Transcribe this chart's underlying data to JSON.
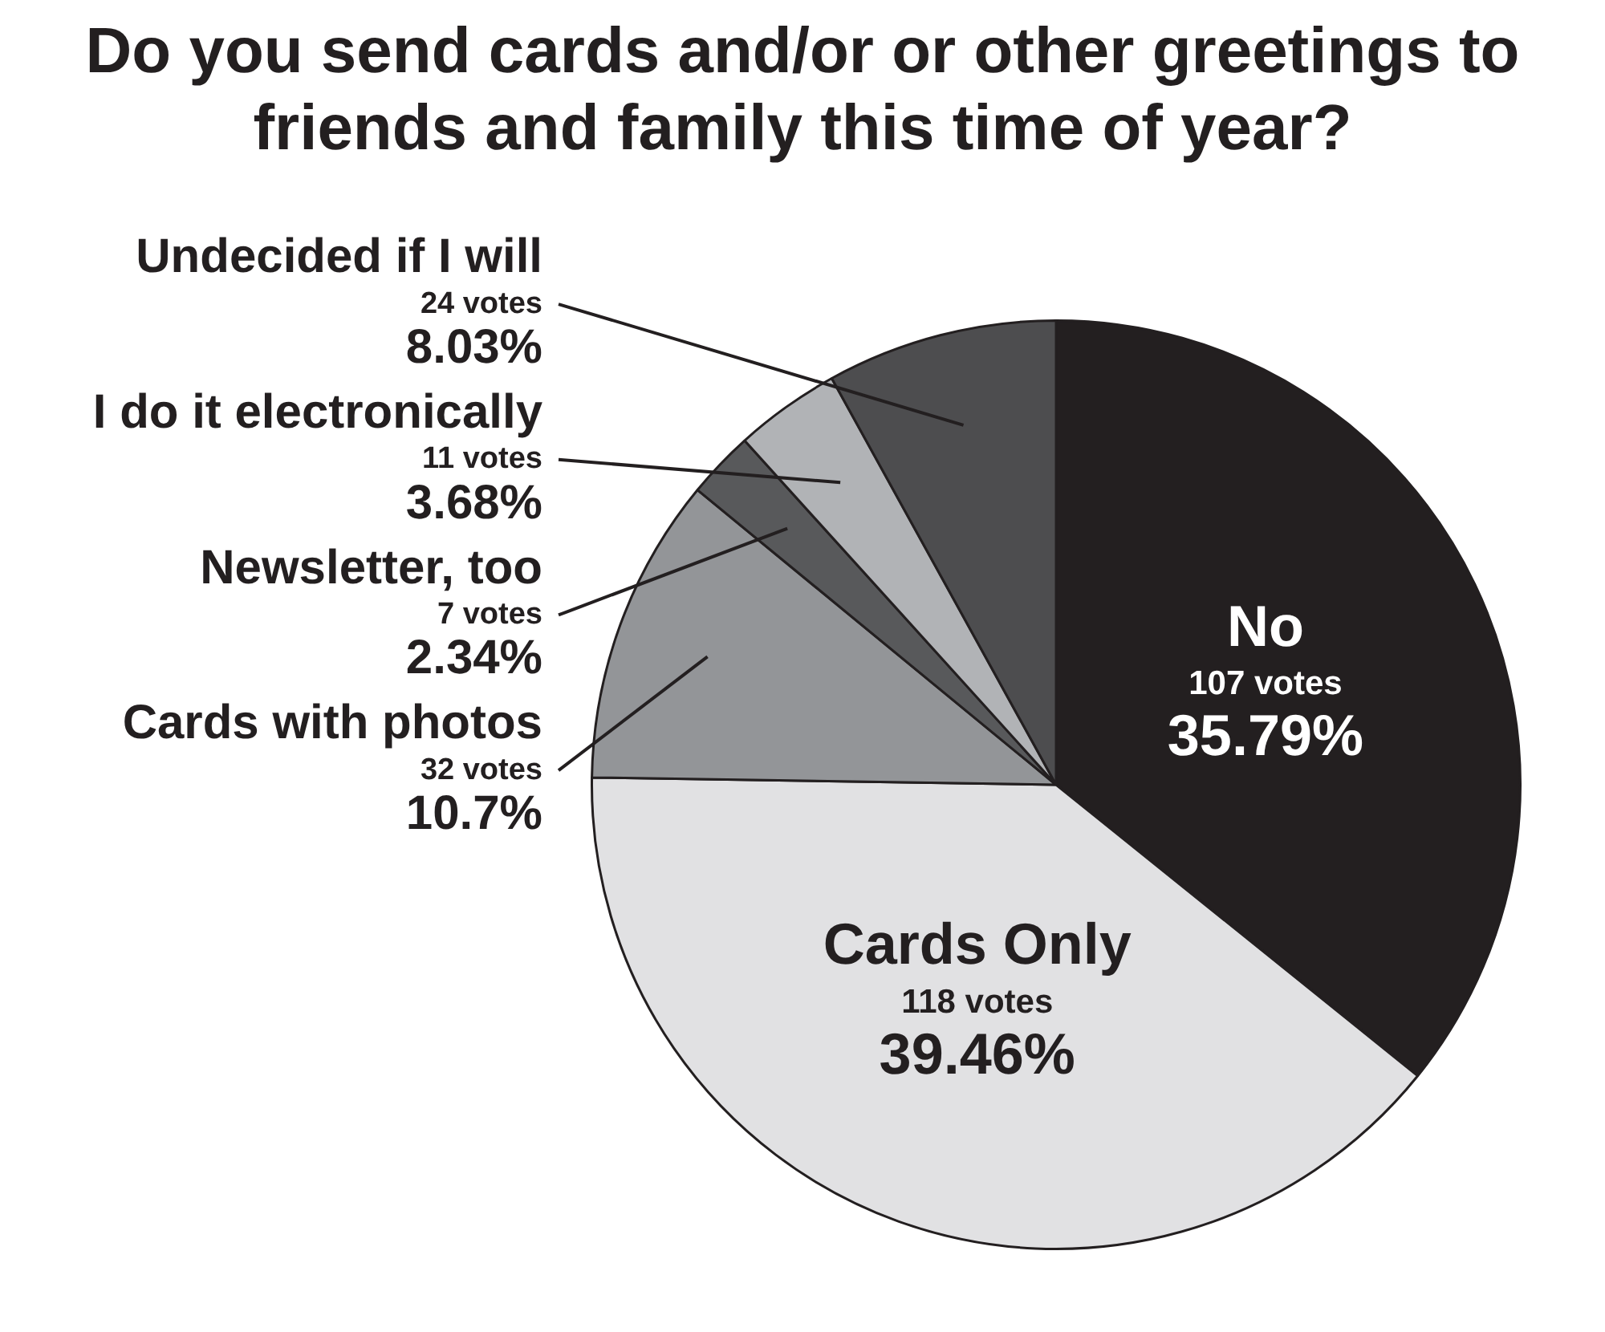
{
  "chart_data": {
    "type": "pie",
    "title": "Do you send cards and/or or other greetings to friends and family this time of year?",
    "categories": [
      "No",
      "Cards Only",
      "Cards with photos",
      "Newsletter, too",
      "I do it electronically",
      "Undecided if I will"
    ],
    "values": [
      107,
      118,
      32,
      7,
      11,
      24
    ],
    "colors": [
      "#231f20",
      "#e1e1e3",
      "#939598",
      "#58595b",
      "#b1b3b6",
      "#4d4d4f"
    ],
    "value_labels": [
      "107 votes\n35.79%",
      "118 votes\n39.46%",
      "32 votes\n10.7%",
      "7 votes\n2.34%",
      "11 votes\n3.68%",
      "24 votes\n8.03%"
    ]
  }
}
